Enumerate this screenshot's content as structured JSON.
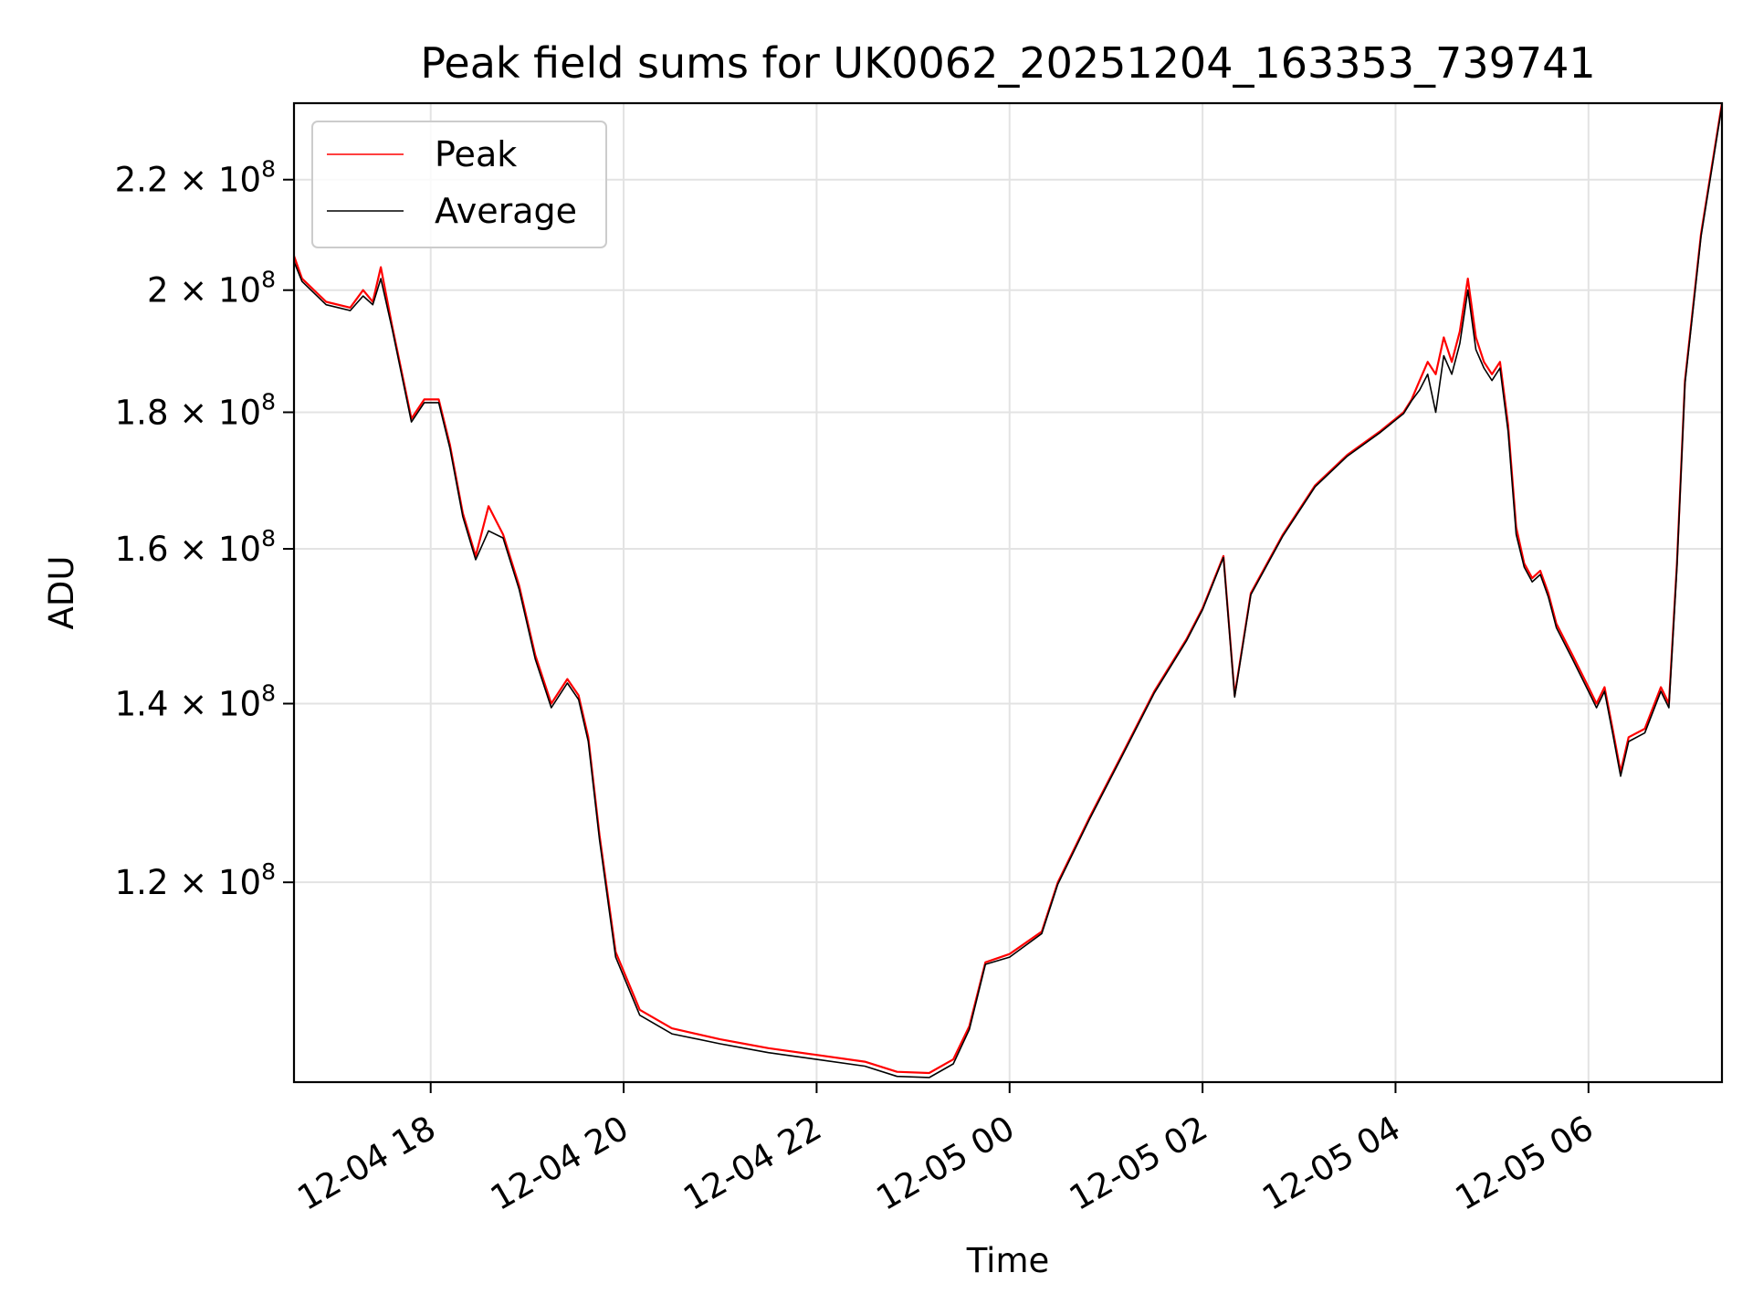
{
  "chart_data": {
    "type": "line",
    "title": "Peak field sums for UK0062_20251204_163353_739741",
    "xlabel": "Time",
    "ylabel": "ADU",
    "y_scale": "log",
    "grid": true,
    "legend_position": "top-left",
    "xlim": [
      "2025-12-04 16:35",
      "2025-12-05 07:23"
    ],
    "ylim": [
      101000000,
      235000000
    ],
    "x_ticks": [
      {
        "value": "2025-12-04 18:00",
        "label": "12-04 18"
      },
      {
        "value": "2025-12-04 20:00",
        "label": "12-04 20"
      },
      {
        "value": "2025-12-04 22:00",
        "label": "12-04 22"
      },
      {
        "value": "2025-12-05 00:00",
        "label": "12-05 00"
      },
      {
        "value": "2025-12-05 02:00",
        "label": "12-05 02"
      },
      {
        "value": "2025-12-05 04:00",
        "label": "12-05 04"
      },
      {
        "value": "2025-12-05 06:00",
        "label": "12-05 06"
      }
    ],
    "y_ticks": [
      {
        "value": 120000000,
        "mantissa": "1.2",
        "base": "10",
        "exponent": "8"
      },
      {
        "value": 140000000,
        "mantissa": "1.4",
        "base": "10",
        "exponent": "8"
      },
      {
        "value": 160000000,
        "mantissa": "1.6",
        "base": "10",
        "exponent": "8"
      },
      {
        "value": 180000000,
        "mantissa": "1.8",
        "base": "10",
        "exponent": "8"
      },
      {
        "value": 200000000,
        "mantissa": "2",
        "base": "10",
        "exponent": "8"
      },
      {
        "value": 220000000,
        "mantissa": "2.2",
        "base": "10",
        "exponent": "8"
      }
    ],
    "x": [
      "2025-12-04 16:35",
      "2025-12-04 16:40",
      "2025-12-04 16:55",
      "2025-12-04 17:10",
      "2025-12-04 17:18",
      "2025-12-04 17:24",
      "2025-12-04 17:29",
      "2025-12-04 17:36",
      "2025-12-04 17:48",
      "2025-12-04 17:56",
      "2025-12-04 18:05",
      "2025-12-04 18:12",
      "2025-12-04 18:20",
      "2025-12-04 18:28",
      "2025-12-04 18:36",
      "2025-12-04 18:45",
      "2025-12-04 18:55",
      "2025-12-04 19:05",
      "2025-12-04 19:15",
      "2025-12-04 19:25",
      "2025-12-04 19:32",
      "2025-12-04 19:38",
      "2025-12-04 19:45",
      "2025-12-04 19:55",
      "2025-12-04 20:10",
      "2025-12-04 20:30",
      "2025-12-04 21:00",
      "2025-12-04 21:30",
      "2025-12-04 22:00",
      "2025-12-04 22:30",
      "2025-12-04 22:50",
      "2025-12-04 23:10",
      "2025-12-04 23:25",
      "2025-12-04 23:35",
      "2025-12-04 23:45",
      "2025-12-05 00:00",
      "2025-12-05 00:20",
      "2025-12-05 00:30",
      "2025-12-05 00:50",
      "2025-12-05 01:10",
      "2025-12-05 01:30",
      "2025-12-05 01:50",
      "2025-12-05 02:00",
      "2025-12-05 02:13",
      "2025-12-05 02:20",
      "2025-12-05 02:30",
      "2025-12-05 02:50",
      "2025-12-05 03:10",
      "2025-12-05 03:30",
      "2025-12-05 03:50",
      "2025-12-05 04:05",
      "2025-12-05 04:10",
      "2025-12-05 04:15",
      "2025-12-05 04:20",
      "2025-12-05 04:25",
      "2025-12-05 04:30",
      "2025-12-05 04:35",
      "2025-12-05 04:40",
      "2025-12-05 04:45",
      "2025-12-05 04:50",
      "2025-12-05 04:55",
      "2025-12-05 05:00",
      "2025-12-05 05:05",
      "2025-12-05 05:10",
      "2025-12-05 05:15",
      "2025-12-05 05:20",
      "2025-12-05 05:25",
      "2025-12-05 05:30",
      "2025-12-05 05:35",
      "2025-12-05 05:40",
      "2025-12-05 05:50",
      "2025-12-05 06:00",
      "2025-12-05 06:05",
      "2025-12-05 06:10",
      "2025-12-05 06:15",
      "2025-12-05 06:20",
      "2025-12-05 06:25",
      "2025-12-05 06:35",
      "2025-12-05 06:45",
      "2025-12-05 06:50",
      "2025-12-05 06:55",
      "2025-12-05 07:00",
      "2025-12-05 07:10",
      "2025-12-05 07:23"
    ],
    "series": [
      {
        "name": "Peak",
        "color": "#ff0000",
        "values": [
          206000000,
          202000000,
          198000000,
          197000000,
          200000000,
          198000000,
          204000000,
          194000000,
          179000000,
          182000000,
          182000000,
          175000000,
          165000000,
          159000000,
          166000000,
          162000000,
          155000000,
          146000000,
          140000000,
          143000000,
          141000000,
          136000000,
          125000000,
          113000000,
          107500000,
          105800000,
          104800000,
          104000000,
          103400000,
          102800000,
          101900000,
          101800000,
          103000000,
          106000000,
          112000000,
          112800000,
          115000000,
          120000000,
          127000000,
          134000000,
          141500000,
          148000000,
          152000000,
          159000000,
          141000000,
          154000000,
          162000000,
          169000000,
          173500000,
          177000000,
          180000000,
          182000000,
          185000000,
          188000000,
          186000000,
          192000000,
          188000000,
          193000000,
          202000000,
          192000000,
          188000000,
          186000000,
          188000000,
          178000000,
          163000000,
          158000000,
          156000000,
          157000000,
          154000000,
          150000000,
          146000000,
          142000000,
          140000000,
          142000000,
          137000000,
          132000000,
          136000000,
          137000000,
          142000000,
          140000000,
          158000000,
          185000000,
          210000000,
          235000000
        ]
      },
      {
        "name": "Average",
        "color": "#000000",
        "values": [
          205000000,
          201500000,
          197500000,
          196500000,
          199000000,
          197500000,
          202000000,
          193500000,
          178500000,
          181500000,
          181500000,
          174500000,
          164500000,
          158500000,
          162500000,
          161500000,
          154500000,
          145500000,
          139500000,
          142500000,
          140500000,
          135500000,
          124500000,
          112500000,
          107000000,
          105300000,
          104400000,
          103600000,
          103000000,
          102400000,
          101500000,
          101400000,
          102600000,
          105700000,
          111800000,
          112500000,
          114800000,
          119800000,
          126800000,
          133800000,
          141300000,
          147800000,
          151800000,
          158800000,
          140800000,
          153800000,
          161800000,
          168800000,
          173300000,
          176800000,
          179800000,
          181800000,
          183500000,
          186000000,
          180000000,
          189000000,
          186000000,
          191000000,
          200000000,
          190000000,
          187000000,
          185000000,
          187000000,
          177000000,
          162000000,
          157500000,
          155500000,
          156500000,
          153500000,
          149500000,
          145500000,
          141500000,
          139500000,
          141500000,
          136500000,
          131500000,
          135500000,
          136500000,
          141500000,
          139500000,
          157500000,
          184500000,
          209500000,
          234500000
        ]
      }
    ]
  }
}
